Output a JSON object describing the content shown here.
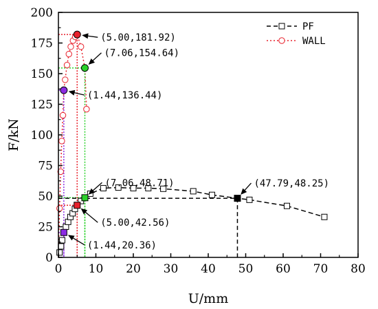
{
  "chart_data": {
    "type": "scatter",
    "title": "",
    "xlabel": "U/mm",
    "ylabel": "F/kN",
    "xlim": [
      0,
      80
    ],
    "ylim": [
      0,
      200
    ],
    "xticks": [
      0,
      10,
      20,
      30,
      40,
      50,
      60,
      70,
      80
    ],
    "yticks": [
      0,
      25,
      50,
      75,
      100,
      125,
      150,
      175,
      200
    ],
    "grid": false,
    "legend": "top-right",
    "series": [
      {
        "name": "PF",
        "line": "dashed",
        "color": "#000000",
        "marker": "square-open",
        "x": [
          0,
          0.3,
          0.7,
          1.0,
          1.44,
          2.0,
          2.6,
          3.2,
          3.8,
          4.4,
          5.0,
          6.0,
          7.06,
          8.5,
          12,
          16,
          20,
          24,
          28,
          36,
          41,
          47.79,
          51,
          61,
          71
        ],
        "y": [
          0,
          4,
          9,
          14,
          20.36,
          25,
          29,
          33,
          36,
          39.5,
          42.56,
          46,
          48.71,
          52,
          56.5,
          57,
          56.5,
          56.5,
          56,
          54,
          51,
          48.25,
          47,
          42,
          33
        ]
      },
      {
        "name": "WALL",
        "line": "dotted",
        "color": "#e8212c",
        "marker": "circle-open",
        "x": [
          0,
          0.3,
          0.6,
          0.9,
          1.2,
          1.44,
          1.8,
          2.3,
          2.8,
          3.3,
          3.9,
          4.5,
          5.0,
          6.0,
          7.06,
          7.5
        ],
        "y": [
          0,
          40,
          70,
          95,
          116,
          136.44,
          145,
          157,
          166,
          172,
          177,
          180,
          181.92,
          172,
          154.64,
          121
        ]
      }
    ],
    "annotations": [
      {
        "label": "(5.00,181.92)",
        "x": 5.0,
        "y": 181.92,
        "color": "#e8212c"
      },
      {
        "label": "(7.06,154.64)",
        "x": 7.06,
        "y": 154.64,
        "color": "#2bd12b"
      },
      {
        "label": "(1.44,136.44)",
        "x": 1.44,
        "y": 136.44,
        "color": "#8b2be2"
      },
      {
        "label": "(7.06,48.71)",
        "x": 7.06,
        "y": 48.71,
        "color": "#2bd12b"
      },
      {
        "label": "(47.79,48.25)",
        "x": 47.79,
        "y": 48.25,
        "color": "#000000"
      },
      {
        "label": "(5.00,42.56)",
        "x": 5.0,
        "y": 42.56,
        "color": "#e8212c"
      },
      {
        "label": "(1.44,20.36)",
        "x": 1.44,
        "y": 20.36,
        "color": "#8b2be2"
      }
    ]
  }
}
